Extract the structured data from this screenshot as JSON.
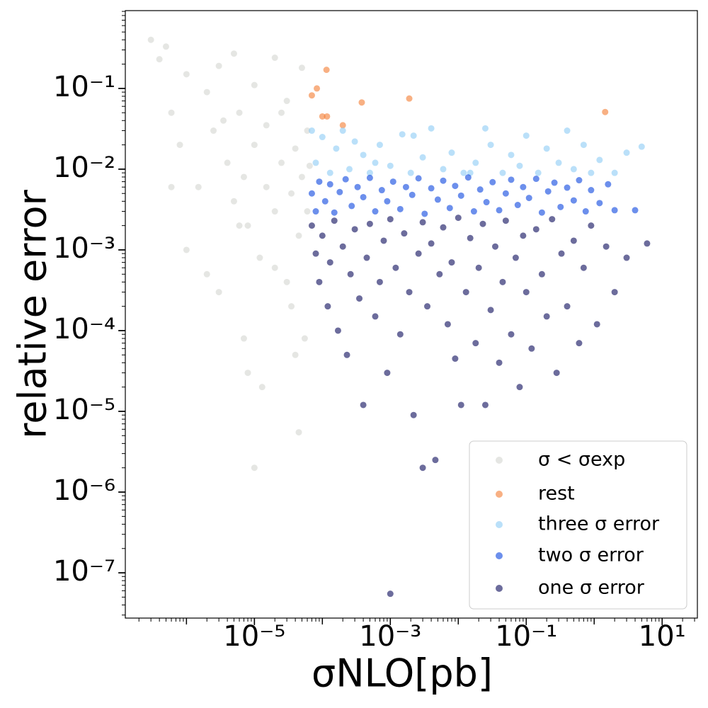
{
  "chart_data": {
    "type": "scatter",
    "x_label": "σNLO[pb]",
    "y_label": "relative error",
    "xscale": "log",
    "yscale": "log",
    "xlim": [
      1.26e-07,
      33
    ],
    "ylim": [
      2.75e-08,
      0.92
    ],
    "xticks": [
      {
        "value": 1e-05,
        "label": "10⁻⁵"
      },
      {
        "value": 0.001,
        "label": "10⁻³"
      },
      {
        "value": 0.1,
        "label": "10⁻¹"
      },
      {
        "value": 10,
        "label": "10¹"
      }
    ],
    "yticks": [
      {
        "value": 1e-07,
        "label": "10⁻⁷"
      },
      {
        "value": 1e-06,
        "label": "10⁻⁶"
      },
      {
        "value": 1e-05,
        "label": "10⁻⁵"
      },
      {
        "value": 0.0001,
        "label": "10⁻⁴"
      },
      {
        "value": 0.001,
        "label": "10⁻³"
      },
      {
        "value": 0.01,
        "label": "10⁻²"
      },
      {
        "value": 0.1,
        "label": "10⁻¹"
      }
    ],
    "legend": "lower right",
    "series": [
      {
        "name": "σ < σexp",
        "color": "#d3d6d0",
        "x": [
          3e-07,
          4e-07,
          5e-07,
          6e-07,
          8e-07,
          1e-06,
          1.5e-06,
          2e-06,
          2.5e-06,
          3e-06,
          4e-06,
          5e-06,
          5e-06,
          6e-06,
          7e-06,
          8e-06,
          1e-05,
          1e-05,
          1.2e-05,
          1.5e-05,
          1.5e-05,
          2e-05,
          2e-05,
          2.5e-05,
          3e-05,
          3e-05,
          3.5e-05,
          4e-05,
          4.5e-05,
          5e-05,
          5e-05,
          5.5e-05,
          6e-05,
          6e-05,
          6.5e-05,
          4e-05,
          1e-05,
          3e-06,
          8e-06,
          2e-05,
          1.3e-05,
          4.5e-05,
          6e-07,
          1e-06,
          2e-06,
          3.5e-06,
          6e-06,
          2.5e-05,
          3.5e-05,
          7e-06
        ],
        "values": [
          0.4,
          0.23,
          0.33,
          0.05,
          0.02,
          0.15,
          0.006,
          0.09,
          0.03,
          0.19,
          0.012,
          0.27,
          0.004,
          0.05,
          0.008,
          0.002,
          0.11,
          0.02,
          0.0008,
          0.006,
          0.035,
          0.24,
          0.003,
          0.012,
          0.0004,
          0.07,
          0.005,
          0.018,
          0.0015,
          0.18,
          0.008,
          8e-05,
          0.03,
          0.003,
          0.011,
          5e-05,
          2e-06,
          0.0003,
          3e-05,
          0.0006,
          2e-05,
          5.5e-06,
          0.006,
          0.001,
          0.0005,
          0.04,
          0.002,
          0.05,
          0.0002,
          8e-05
        ]
      },
      {
        "name": "rest",
        "color": "#f47c30",
        "x": [
          7e-05,
          8.3e-05,
          0.000115,
          0.0001,
          0.000117,
          0.0002,
          0.00038,
          0.0019,
          1.45
        ],
        "values": [
          0.082,
          0.1,
          0.17,
          0.045,
          0.045,
          0.035,
          0.067,
          0.075,
          0.051
        ]
      },
      {
        "name": "three σ error",
        "color": "#8ccbf5",
        "x": [
          7e-05,
          8e-05,
          0.0001,
          0.00013,
          0.00016,
          0.0002,
          0.00025,
          0.0003,
          0.0004,
          0.0005,
          0.0007,
          0.001,
          0.0015,
          0.002,
          0.003,
          0.004,
          0.006,
          0.008,
          0.012,
          0.018,
          0.025,
          0.03,
          0.045,
          0.06,
          0.08,
          0.1,
          0.15,
          0.2,
          0.3,
          0.4,
          0.5,
          0.7,
          0.9,
          1.2,
          2,
          3,
          5,
          0.015,
          0.0022,
          0.0006
        ],
        "values": [
          0.03,
          0.012,
          0.025,
          0.009,
          0.018,
          0.03,
          0.01,
          0.022,
          0.015,
          0.009,
          0.02,
          0.011,
          0.027,
          0.009,
          0.014,
          0.032,
          0.01,
          0.016,
          0.009,
          0.012,
          0.032,
          0.02,
          0.009,
          0.015,
          0.011,
          0.026,
          0.009,
          0.018,
          0.012,
          0.03,
          0.01,
          0.02,
          0.009,
          0.013,
          0.009,
          0.016,
          0.019,
          0.009,
          0.026,
          0.012
        ]
      },
      {
        "name": "two σ error",
        "color": "#0a44e0",
        "x": [
          7e-05,
          8e-05,
          9e-05,
          0.00011,
          0.00013,
          0.00015,
          0.00018,
          0.00022,
          0.00027,
          0.00033,
          0.0004,
          0.0005,
          0.0006,
          0.00075,
          0.0009,
          0.0011,
          0.0014,
          0.0017,
          0.0021,
          0.0026,
          0.0032,
          0.004,
          0.005,
          0.006,
          0.0075,
          0.009,
          0.011,
          0.014,
          0.017,
          0.021,
          0.026,
          0.032,
          0.04,
          0.05,
          0.06,
          0.075,
          0.09,
          0.11,
          0.14,
          0.17,
          0.21,
          0.26,
          0.32,
          0.4,
          0.5,
          0.6,
          0.75,
          0.9,
          1.2,
          1.6,
          2,
          4
        ],
        "values": [
          0.005,
          0.003,
          0.007,
          0.004,
          0.0065,
          0.0029,
          0.0052,
          0.0075,
          0.0035,
          0.006,
          0.0045,
          0.0078,
          0.003,
          0.0055,
          0.004,
          0.007,
          0.0032,
          0.006,
          0.0048,
          0.0077,
          0.0028,
          0.0058,
          0.0042,
          0.0072,
          0.0033,
          0.0062,
          0.0047,
          0.0079,
          0.003,
          0.0056,
          0.0039,
          0.0069,
          0.0031,
          0.005,
          0.0074,
          0.0036,
          0.006,
          0.0044,
          0.0076,
          0.0029,
          0.0053,
          0.0068,
          0.0034,
          0.0059,
          0.0041,
          0.0073,
          0.003,
          0.0055,
          0.0038,
          0.0065,
          0.0031,
          0.0031
        ]
      },
      {
        "name": "one σ error",
        "color": "#0a0a5a",
        "x": [
          7e-05,
          8e-05,
          9e-05,
          0.0001,
          0.00012,
          0.00013,
          0.00015,
          0.00017,
          0.0002,
          0.00023,
          0.00026,
          0.0003,
          0.00035,
          0.0004,
          0.00045,
          0.0005,
          0.0006,
          0.0007,
          0.0008,
          0.0009,
          0.001,
          0.0012,
          0.0014,
          0.0016,
          0.0019,
          0.0022,
          0.0026,
          0.003,
          0.0035,
          0.004,
          0.0046,
          0.0053,
          0.006,
          0.007,
          0.008,
          0.009,
          0.01,
          0.011,
          0.013,
          0.015,
          0.018,
          0.02,
          0.023,
          0.025,
          0.03,
          0.035,
          0.04,
          0.045,
          0.05,
          0.06,
          0.07,
          0.08,
          0.09,
          0.1,
          0.12,
          0.14,
          0.17,
          0.2,
          0.24,
          0.28,
          0.33,
          0.4,
          0.5,
          0.6,
          0.7,
          0.9,
          1.1,
          1.5,
          2,
          3,
          6,
          0.001,
          0.003
        ],
        "values": [
          0.002,
          0.0009,
          0.0004,
          0.0015,
          0.0002,
          0.0007,
          0.0023,
          0.0001,
          0.0011,
          5e-05,
          0.0005,
          0.0018,
          0.00025,
          1.2e-05,
          0.0008,
          0.0021,
          0.00015,
          0.0004,
          0.0013,
          3e-05,
          0.0024,
          0.0006,
          9e-05,
          0.0016,
          0.0003,
          9e-06,
          0.0009,
          0.0022,
          0.0002,
          0.0012,
          2.5e-06,
          0.0005,
          0.0019,
          0.00012,
          0.0007,
          4.5e-05,
          0.0025,
          1.2e-05,
          0.0003,
          0.0014,
          7e-05,
          0.0006,
          0.0021,
          1.2e-05,
          0.00018,
          0.0011,
          4e-05,
          0.0004,
          0.0023,
          9e-05,
          0.0008,
          2e-05,
          0.0015,
          0.0003,
          6e-05,
          0.0018,
          0.0005,
          0.00015,
          0.0024,
          3e-05,
          0.0009,
          0.0002,
          0.0013,
          7e-05,
          0.0006,
          0.002,
          0.00012,
          0.0011,
          0.0003,
          0.0008,
          0.0012,
          5.5e-08,
          2e-06
        ]
      }
    ]
  }
}
